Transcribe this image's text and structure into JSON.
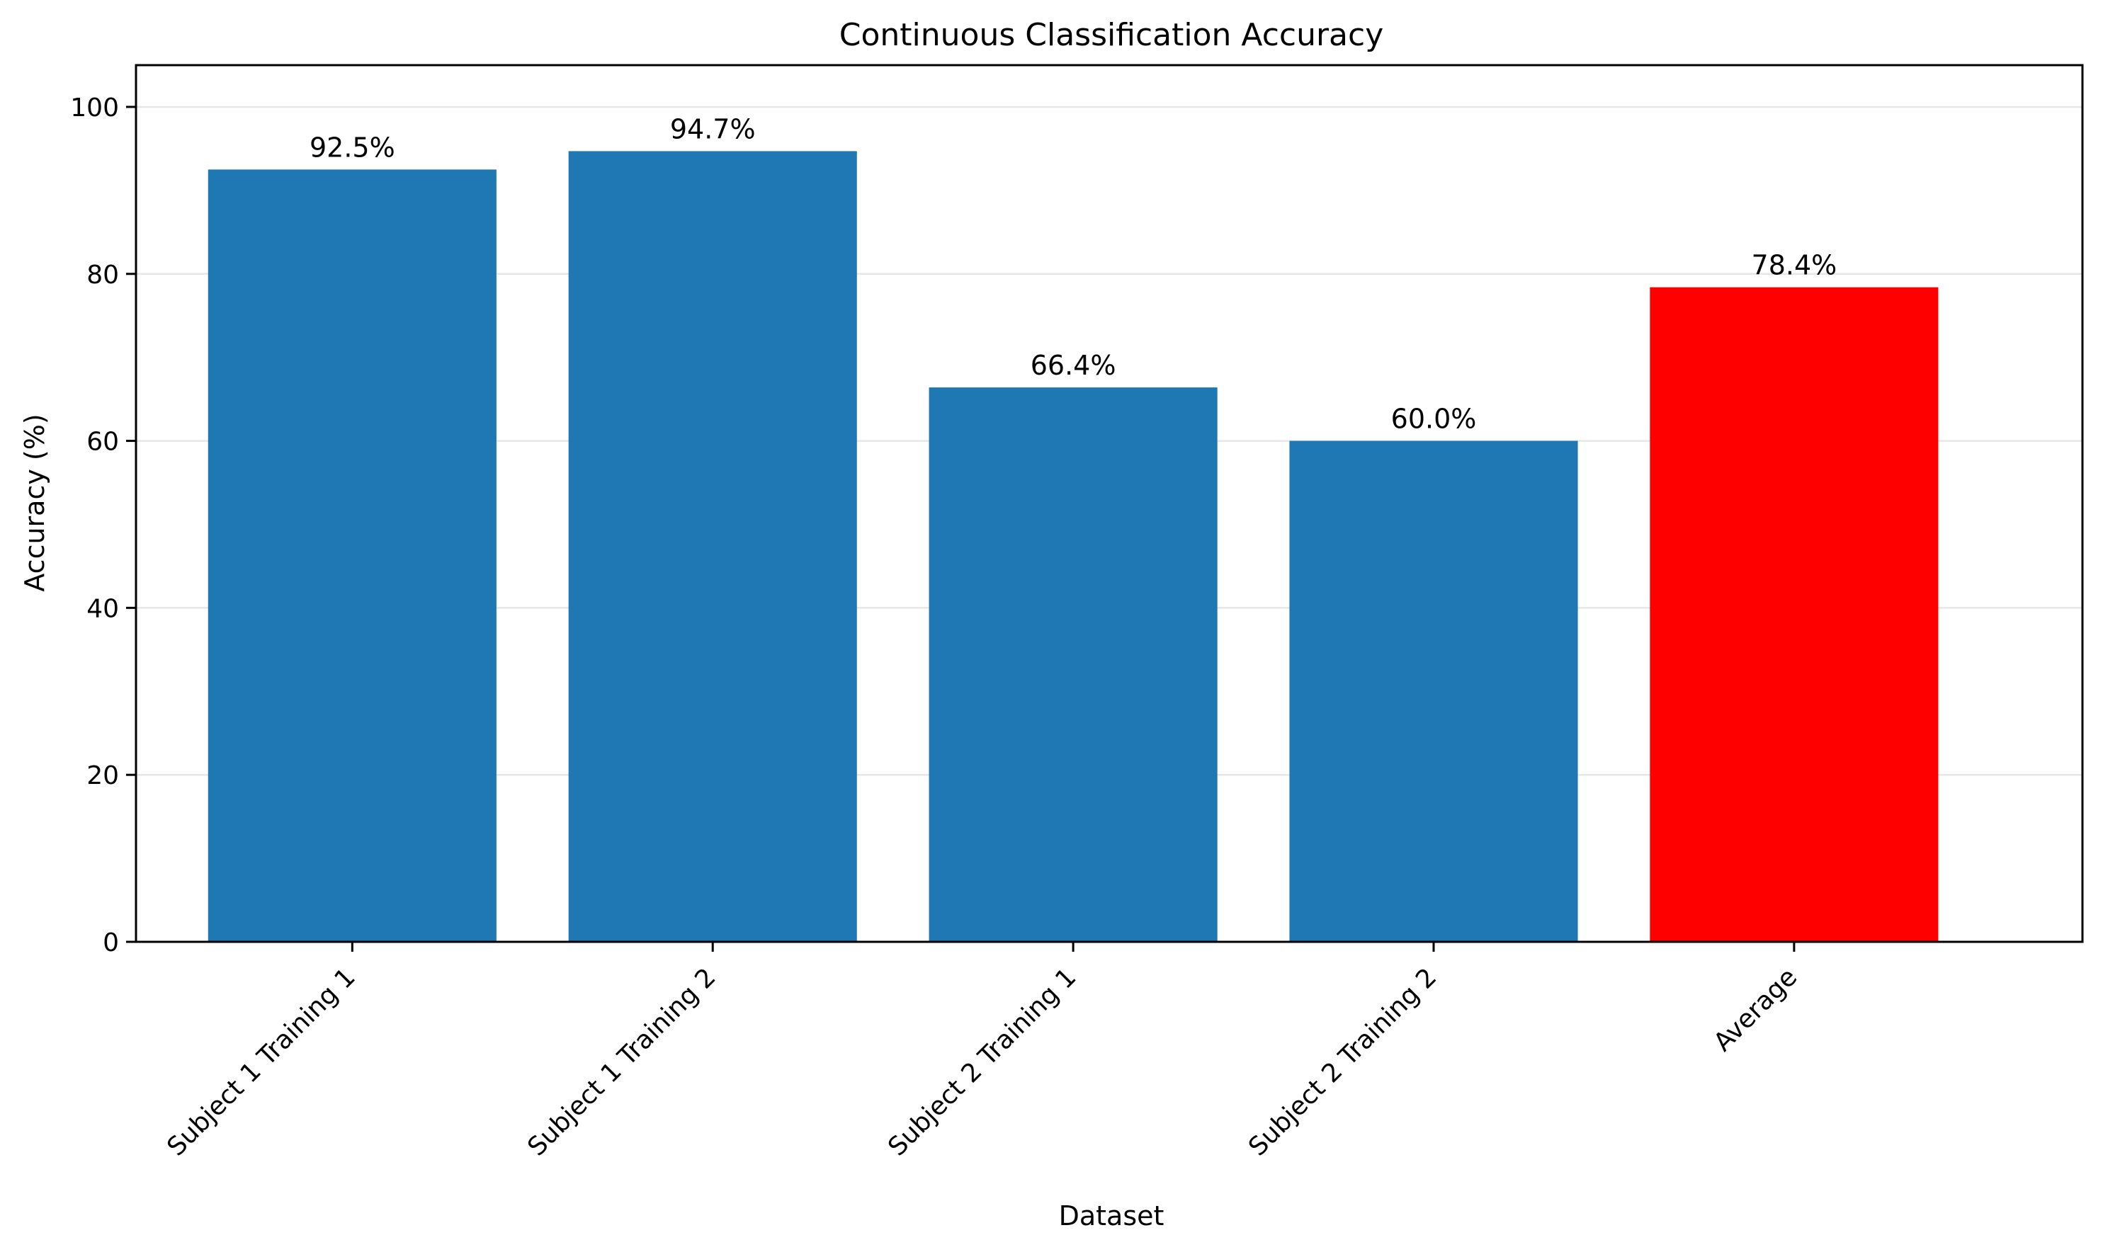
{
  "chart_data": {
    "type": "bar",
    "title": "Continuous Classification Accuracy",
    "xlabel": "Dataset",
    "ylabel": "Accuracy (%)",
    "categories": [
      "Subject 1 Training 1",
      "Subject 1 Training 2",
      "Subject 2 Training 1",
      "Subject 2 Training 2",
      "Average"
    ],
    "values": [
      92.5,
      94.7,
      66.4,
      60.0,
      78.4
    ],
    "value_labels": [
      "92.5%",
      "94.7%",
      "66.4%",
      "60.0%",
      "78.4%"
    ],
    "bar_colors": [
      "#1f77b4",
      "#1f77b4",
      "#1f77b4",
      "#1f77b4",
      "#ff0000"
    ],
    "yticks": [
      0,
      20,
      40,
      60,
      80,
      100
    ],
    "ylim": [
      0,
      105
    ],
    "grid": "horizontal",
    "grid_color": "#e6e6e6"
  }
}
